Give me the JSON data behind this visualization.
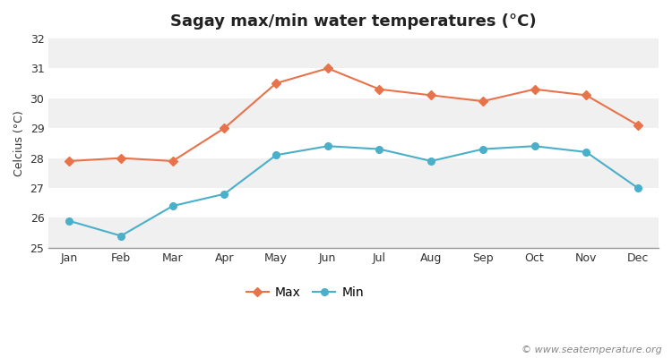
{
  "title": "Sagay max/min water temperatures (°C)",
  "ylabel": "Celcius (°C)",
  "months": [
    "Jan",
    "Feb",
    "Mar",
    "Apr",
    "May",
    "Jun",
    "Jul",
    "Aug",
    "Sep",
    "Oct",
    "Nov",
    "Dec"
  ],
  "max_temps": [
    27.9,
    28.0,
    27.9,
    29.0,
    30.5,
    31.0,
    30.3,
    30.1,
    29.9,
    30.3,
    30.1,
    29.1
  ],
  "min_temps": [
    25.9,
    25.4,
    26.4,
    26.8,
    28.1,
    28.4,
    28.3,
    27.9,
    28.3,
    28.4,
    28.2,
    27.0
  ],
  "max_color": "#e8724a",
  "min_color": "#4aafc9",
  "bg_color": "#ffffff",
  "plot_bg_color": "#ffffff",
  "band_color_light": "#f0f0f0",
  "band_color_white": "#ffffff",
  "ylim": [
    25,
    32
  ],
  "yticks": [
    25,
    26,
    27,
    28,
    29,
    30,
    31,
    32
  ],
  "legend_max": "Max",
  "legend_min": "Min",
  "watermark": "© www.seatemperature.org",
  "title_fontsize": 13,
  "axis_label_fontsize": 9,
  "tick_fontsize": 9,
  "legend_fontsize": 10,
  "watermark_fontsize": 8
}
